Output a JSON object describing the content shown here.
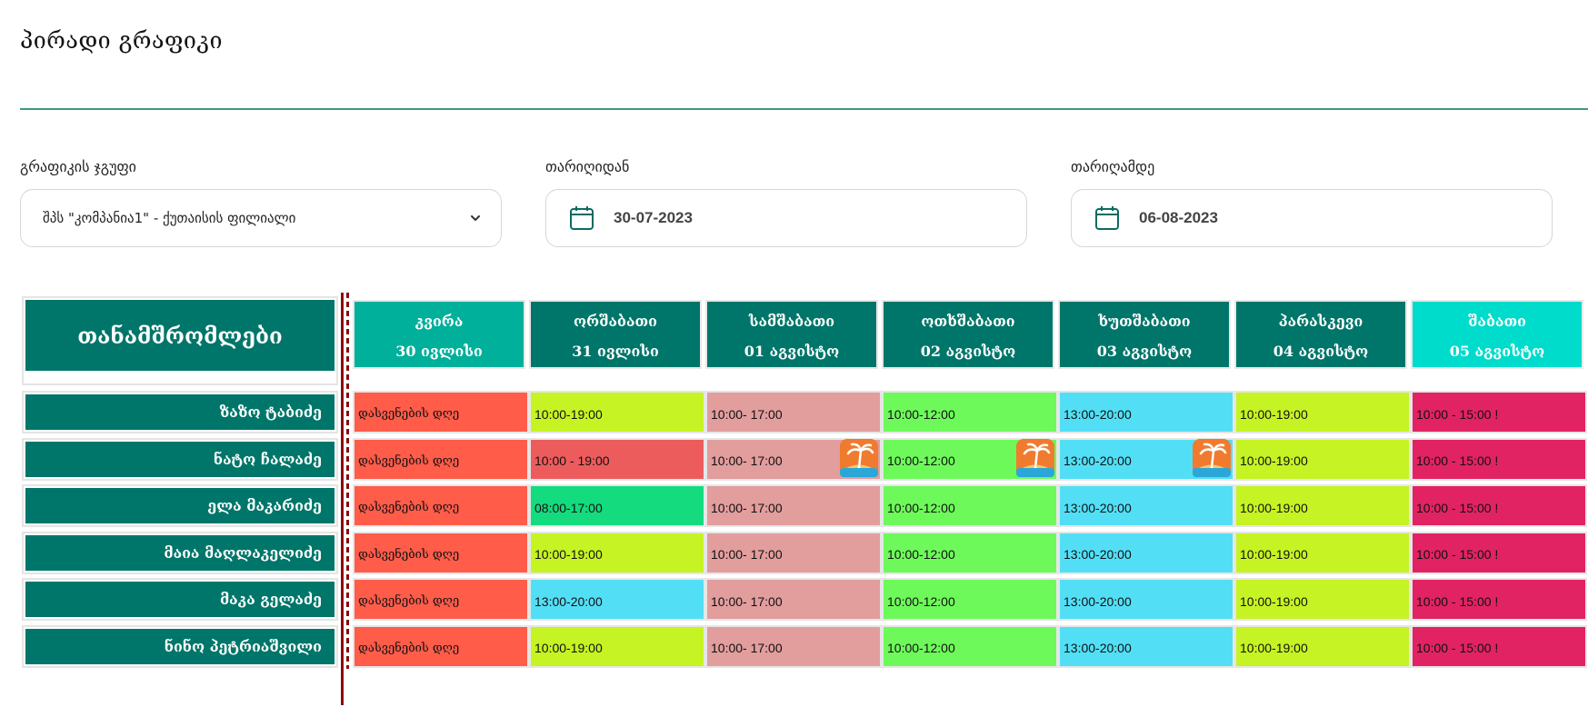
{
  "page": {
    "title": "პირადი გრაფიკი"
  },
  "filters": {
    "group": {
      "label": "გრაფიკის ჯგუფი",
      "value": "შპს \"კომპანია1\" - ქუთაისის ფილიალი"
    },
    "date_from": {
      "label": "თარიღიდან",
      "value": "30-07-2023"
    },
    "date_to": {
      "label": "თარიღამდე",
      "value": "06-08-2023"
    }
  },
  "schedule": {
    "employees_header": "თანამშრომლები",
    "days": [
      {
        "name": "კვირა",
        "date": "30 ივლისი",
        "color": "#00b09b"
      },
      {
        "name": "ორშაბათი",
        "date": "31 ივლისი",
        "color": "#00766a"
      },
      {
        "name": "სამშაბათი",
        "date": "01 აგვისტო",
        "color": "#00766a"
      },
      {
        "name": "ოთხშაბათი",
        "date": "02 აგვისტო",
        "color": "#00766a"
      },
      {
        "name": "ხუთშაბათი",
        "date": "03 აგვისტო",
        "color": "#00766a"
      },
      {
        "name": "პარასკევი",
        "date": "04 აგვისტო",
        "color": "#00766a"
      },
      {
        "name": "შაბათი",
        "date": "05 აგვისტო",
        "color": "#00dccb"
      }
    ],
    "employees": [
      {
        "name": "ზაზო ტაბიძე",
        "shifts": [
          {
            "text": "დასვენების დღე",
            "color": "#ff5c4a"
          },
          {
            "text": "10:00-19:00",
            "color": "#c6f323"
          },
          {
            "text": "10:00- 17:00",
            "color": "#e29d9d"
          },
          {
            "text": "10:00-12:00",
            "color": "#6ef95b"
          },
          {
            "text": "13:00-20:00",
            "color": "#52dff6"
          },
          {
            "text": "10:00-19:00",
            "color": "#c6f323"
          },
          {
            "text": "10:00 - 15:00 !",
            "color": "#e22363"
          }
        ]
      },
      {
        "name": "ნატო ჩალაძე",
        "shifts": [
          {
            "text": "დასვენების დღე",
            "color": "#ff5c4a"
          },
          {
            "text": "10:00 - 19:00",
            "color": "#ed5c5c"
          },
          {
            "text": "10:00- 17:00",
            "color": "#e29d9d",
            "vacation": true
          },
          {
            "text": "10:00-12:00",
            "color": "#6ef95b",
            "vacation": true
          },
          {
            "text": "13:00-20:00",
            "color": "#52dff6",
            "vacation": true
          },
          {
            "text": "10:00-19:00",
            "color": "#c6f323"
          },
          {
            "text": "10:00 - 15:00 !",
            "color": "#e22363"
          }
        ]
      },
      {
        "name": "ელა მაკარიძე",
        "shifts": [
          {
            "text": "დასვენების დღე",
            "color": "#ff5c4a"
          },
          {
            "text": "08:00-17:00",
            "color": "#13db7e"
          },
          {
            "text": "10:00- 17:00",
            "color": "#e29d9d"
          },
          {
            "text": "10:00-12:00",
            "color": "#6ef95b"
          },
          {
            "text": "13:00-20:00",
            "color": "#52dff6"
          },
          {
            "text": "10:00-19:00",
            "color": "#c6f323"
          },
          {
            "text": "10:00 - 15:00 !",
            "color": "#e22363"
          }
        ]
      },
      {
        "name": "მაია მაღლაკელიძე",
        "shifts": [
          {
            "text": "დასვენების დღე",
            "color": "#ff5c4a"
          },
          {
            "text": "10:00-19:00",
            "color": "#c6f323"
          },
          {
            "text": "10:00- 17:00",
            "color": "#e29d9d"
          },
          {
            "text": "10:00-12:00",
            "color": "#6ef95b"
          },
          {
            "text": "13:00-20:00",
            "color": "#52dff6"
          },
          {
            "text": "10:00-19:00",
            "color": "#c6f323"
          },
          {
            "text": "10:00 - 15:00 !",
            "color": "#e22363"
          }
        ]
      },
      {
        "name": "მაკა გელაძე",
        "shifts": [
          {
            "text": "დასვენების დღე",
            "color": "#ff5c4a"
          },
          {
            "text": "13:00-20:00",
            "color": "#52dff6"
          },
          {
            "text": "10:00- 17:00",
            "color": "#e29d9d"
          },
          {
            "text": "10:00-12:00",
            "color": "#6ef95b"
          },
          {
            "text": "13:00-20:00",
            "color": "#52dff6"
          },
          {
            "text": "10:00-19:00",
            "color": "#c6f323"
          },
          {
            "text": "10:00 - 15:00 !",
            "color": "#e22363"
          }
        ]
      },
      {
        "name": "ნინო პეტრიაშვილი",
        "shifts": [
          {
            "text": "დასვენების დღე",
            "color": "#ff5c4a"
          },
          {
            "text": "10:00-19:00",
            "color": "#c6f323"
          },
          {
            "text": "10:00- 17:00",
            "color": "#e29d9d"
          },
          {
            "text": "10:00-12:00",
            "color": "#6ef95b"
          },
          {
            "text": "13:00-20:00",
            "color": "#52dff6"
          },
          {
            "text": "10:00-19:00",
            "color": "#c6f323"
          },
          {
            "text": "10:00 - 15:00 !",
            "color": "#e22363"
          }
        ]
      }
    ]
  },
  "icons": {
    "calendar": "calendar-icon",
    "chevron": "chevron-down-icon",
    "vacation": "vacation-icon"
  }
}
